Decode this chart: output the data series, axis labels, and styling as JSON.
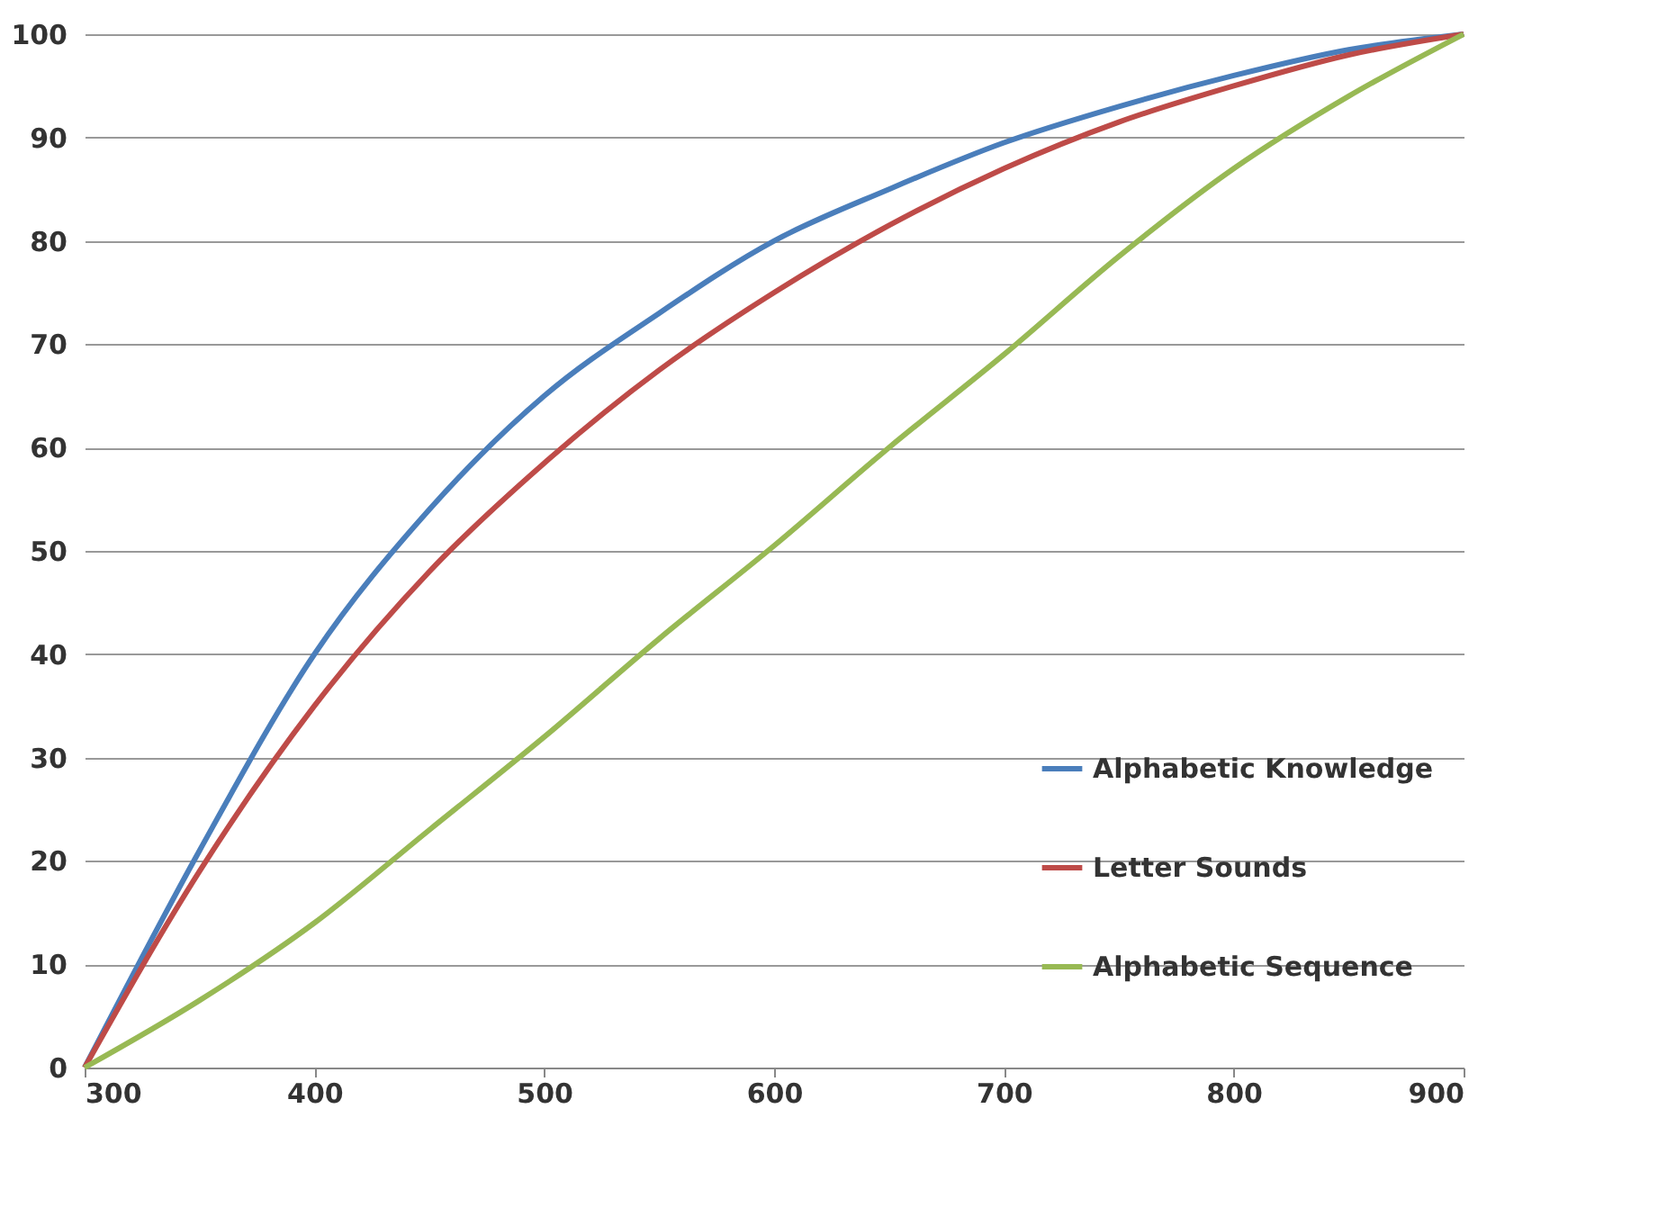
{
  "chart_data": {
    "type": "line",
    "x": [
      300,
      350,
      400,
      450,
      500,
      550,
      600,
      650,
      700,
      750,
      800,
      850,
      900
    ],
    "series": [
      {
        "name": "Alphabetic Knowledge",
        "color": "#4a7ebb",
        "values": [
          0,
          21,
          40,
          54,
          65,
          73,
          80,
          85,
          89.5,
          93,
          96,
          98.5,
          100
        ]
      },
      {
        "name": "Letter Sounds",
        "color": "#be4b48",
        "values": [
          0,
          19,
          35,
          48,
          58.5,
          67.5,
          75,
          81.5,
          87,
          91.5,
          95,
          98,
          100
        ]
      },
      {
        "name": "Alphabetic Sequence",
        "color": "#98b954",
        "values": [
          0,
          6.5,
          14,
          23,
          32,
          41.5,
          50.5,
          60,
          69,
          78.5,
          87,
          94,
          100
        ]
      }
    ],
    "xlim": [
      300,
      900
    ],
    "xticks": [
      300,
      400,
      500,
      600,
      700,
      800,
      900
    ],
    "ylim": [
      0,
      100
    ],
    "yticks": [
      0,
      10,
      20,
      30,
      40,
      50,
      60,
      70,
      80,
      90,
      100
    ],
    "grid": "y",
    "legend": "right",
    "marker": "none",
    "line_style": "solid"
  }
}
